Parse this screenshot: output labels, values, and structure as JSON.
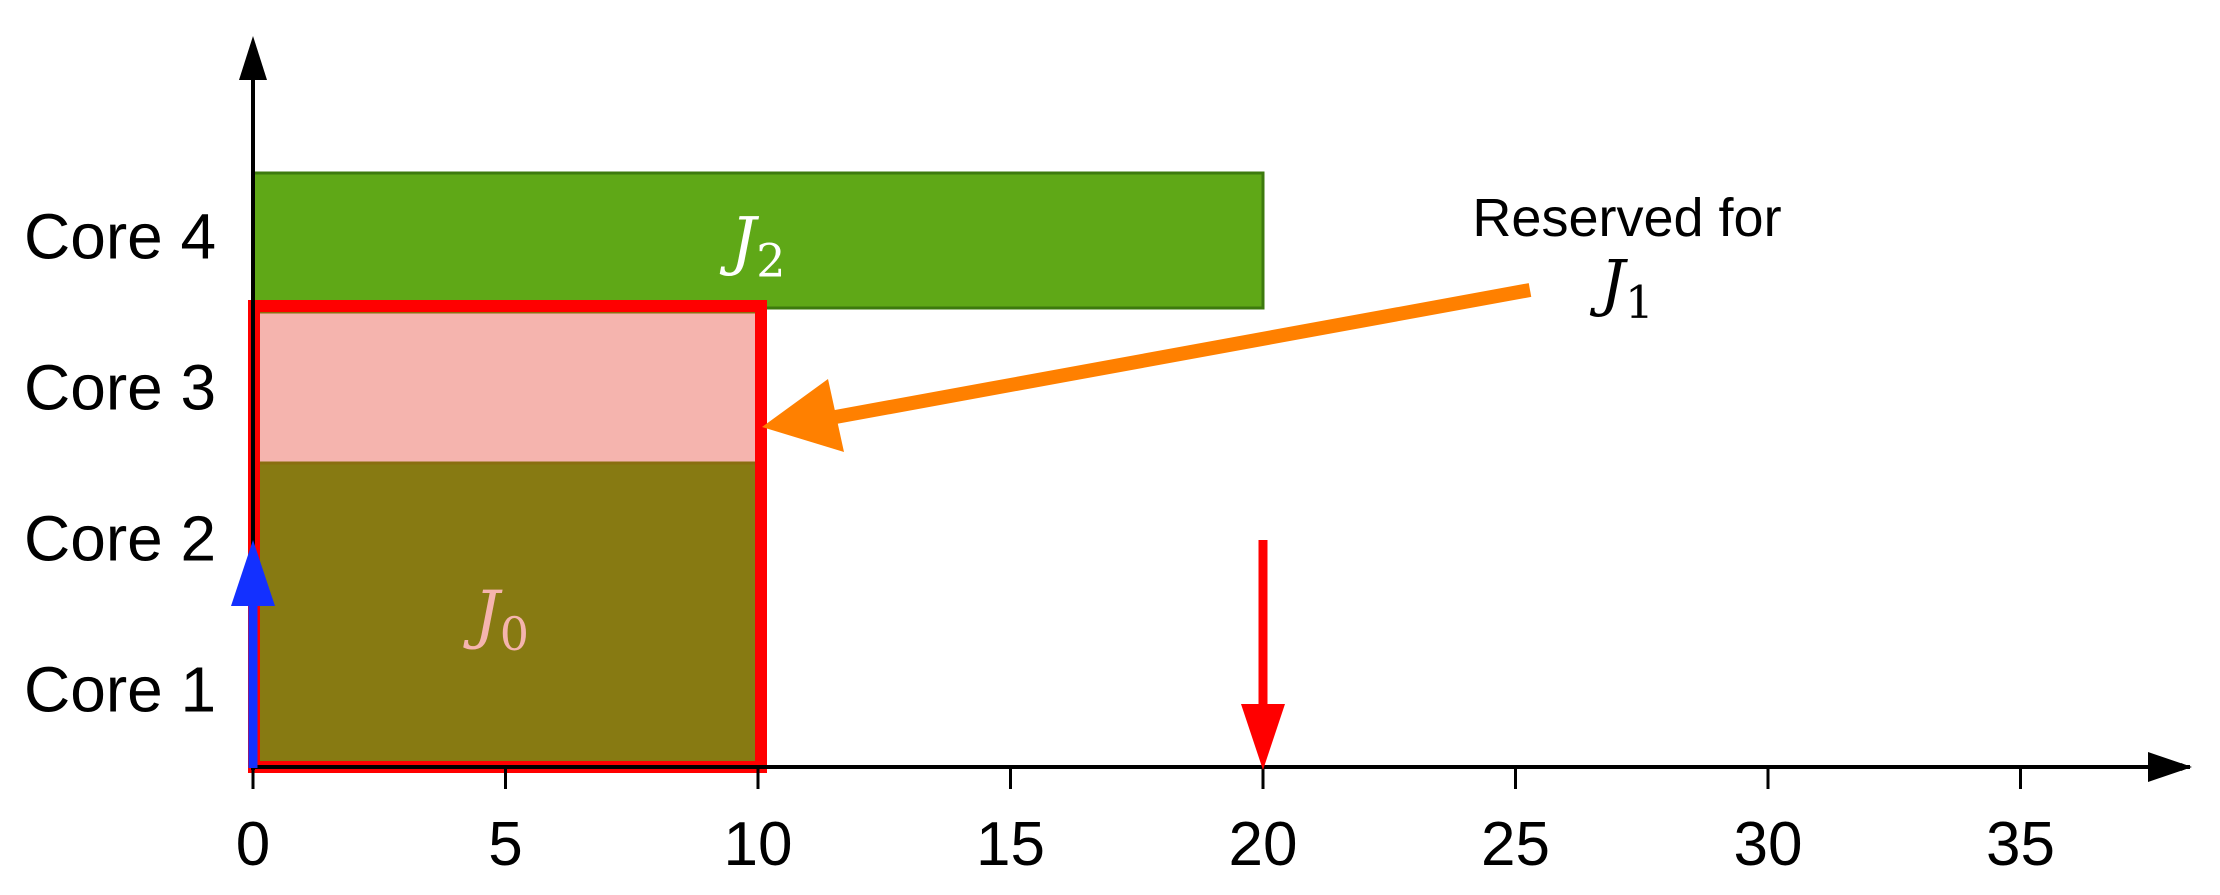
{
  "chart_data": {
    "type": "gantt",
    "x_ticks": [
      0,
      5,
      10,
      15,
      20,
      25,
      30,
      35
    ],
    "xlim": [
      0,
      38.5
    ],
    "cores": [
      "Core 1",
      "Core 2",
      "Core 3",
      "Core 4"
    ],
    "jobs": [
      {
        "job": "J",
        "sub": "0",
        "start": 0,
        "end": 10,
        "cores": [
          "Core 1",
          "Core 2"
        ],
        "color": "#877A12",
        "label_color": "#F5B4AE"
      },
      {
        "job": "J",
        "sub": "1",
        "start": 0,
        "end": 10,
        "cores": [
          "Core 3"
        ],
        "color": "#F5B4AE",
        "reserved": true
      },
      {
        "job": "J",
        "sub": "2",
        "start": 0,
        "end": 20,
        "cores": [
          "Core 4"
        ],
        "color": "#5FA817",
        "label_color": "#ffffff"
      }
    ],
    "annotation": {
      "text": "Reserved for",
      "job": "J",
      "sub": "1",
      "arrow_color": "#FF8000"
    },
    "release_marker": {
      "x": 0,
      "color": "#1330FF"
    },
    "deadline_marker": {
      "x": 20,
      "color": "#FF0000"
    },
    "reservation_box_color": "#FF0000"
  }
}
